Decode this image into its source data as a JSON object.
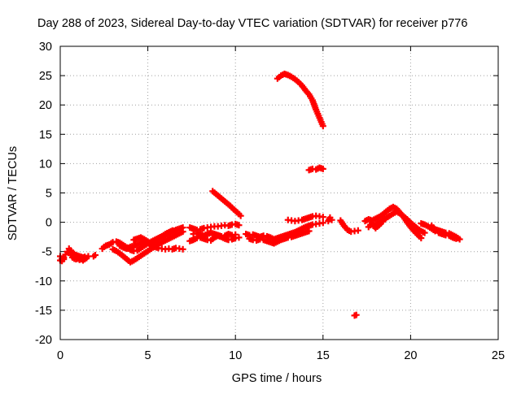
{
  "chart_data": {
    "type": "scatter",
    "title": "Day 288 of 2023, Sidereal Day-to-day VTEC variation (SDTVAR) for receiver p776",
    "xlabel": "GPS time / hours",
    "ylabel": "SDTVAR / TECUs",
    "xlim": [
      0,
      25
    ],
    "ylim": [
      -20,
      30
    ],
    "xticks": [
      "0",
      "5",
      "10",
      "15",
      "20",
      "25"
    ],
    "yticks": [
      "-20",
      "-15",
      "-10",
      "-5",
      "0",
      "5",
      "10",
      "15",
      "20",
      "25",
      "30"
    ],
    "grid": true,
    "marker": "+",
    "color": "#ff0000",
    "series": [
      {
        "name": "p776",
        "segments": [
          {
            "x": [
              0.0,
              0.1,
              0.2,
              0.3,
              0.4,
              0.5,
              0.6,
              0.7,
              0.8,
              0.9,
              1.0,
              1.1,
              1.2,
              1.3,
              1.4,
              1.5,
              1.6
            ],
            "y": [
              -5.8,
              -6.2,
              -6.0,
              -5.5,
              -5.0,
              -4.5,
              -4.8,
              -5.2,
              -5.4,
              -5.6,
              -5.7,
              -5.8,
              -5.9,
              -6.0,
              -5.9,
              -6.1,
              -5.8
            ]
          },
          {
            "x": [
              0.0,
              0.1,
              0.2
            ],
            "y": [
              -6.5,
              -6.6,
              -6.3
            ]
          },
          {
            "x": [
              0.5,
              0.6,
              0.7,
              0.8,
              0.9,
              1.0,
              1.1,
              1.2,
              1.3,
              1.4
            ],
            "y": [
              -5.2,
              -5.6,
              -6.0,
              -6.2,
              -6.3,
              -6.2,
              -6.4,
              -6.3,
              -6.5,
              -6.3
            ]
          },
          {
            "x": [
              1.9,
              2.0
            ],
            "y": [
              -5.8,
              -5.6
            ]
          },
          {
            "x": [
              2.4,
              2.5,
              2.6,
              2.7,
              2.8,
              2.9,
              3.0,
              3.2,
              3.4,
              3.6,
              3.8,
              4.0,
              4.2,
              4.4,
              4.6,
              4.8,
              5.0,
              5.2,
              5.4,
              5.6,
              5.8,
              6.0,
              6.2,
              6.4,
              6.6,
              6.8,
              7.0
            ],
            "y": [
              -4.5,
              -4.2,
              -4.0,
              -3.9,
              -3.8,
              -3.6,
              -3.4,
              -3.3,
              -3.5,
              -3.9,
              -4.3,
              -4.7,
              -4.9,
              -4.8,
              -4.4,
              -4.0,
              -3.6,
              -3.3,
              -3.0,
              -2.7,
              -2.4,
              -2.1,
              -1.9,
              -1.6,
              -1.3,
              -1.1,
              -0.9
            ]
          },
          {
            "x": [
              3.0,
              3.2,
              3.4,
              3.6,
              3.8,
              4.0,
              4.2,
              4.4,
              4.6,
              4.8,
              5.0,
              5.2,
              5.4,
              5.6,
              5.8,
              6.0,
              6.2,
              6.4,
              6.6,
              6.8,
              7.0
            ],
            "y": [
              -4.6,
              -4.9,
              -5.3,
              -5.8,
              -6.3,
              -6.8,
              -6.5,
              -6.1,
              -5.7,
              -5.3,
              -4.9,
              -4.5,
              -4.1,
              -3.7,
              -3.4,
              -3.1,
              -2.8,
              -2.5,
              -2.2,
              -1.9,
              -1.6
            ]
          },
          {
            "x": [
              3.4,
              3.6,
              3.8,
              4.0,
              4.2,
              4.4,
              4.6,
              4.8,
              5.0,
              5.2,
              5.4,
              5.6,
              5.8,
              6.0,
              6.2,
              6.4,
              6.6,
              6.8,
              7.0
            ],
            "y": [
              -4.0,
              -4.3,
              -4.5,
              -4.2,
              -4.0,
              -3.8,
              -3.6,
              -3.4,
              -3.5,
              -3.9,
              -4.2,
              -4.4,
              -4.5,
              -4.6,
              -4.5,
              -4.6,
              -4.4,
              -4.5,
              -4.6
            ]
          },
          {
            "x": [
              4.2,
              4.4,
              4.6,
              4.8,
              5.0,
              5.2,
              5.4,
              5.6,
              5.8,
              6.0,
              6.2,
              6.4
            ],
            "y": [
              -3.0,
              -2.8,
              -2.6,
              -2.9,
              -3.3,
              -3.6,
              -3.2,
              -2.8,
              -2.4,
              -2.0,
              -1.7,
              -1.4
            ]
          },
          {
            "x": [
              7.4,
              7.6,
              7.8,
              8.0,
              8.2,
              8.4,
              8.6,
              8.8,
              9.0,
              9.2,
              9.4,
              9.6,
              9.8,
              10.0,
              10.2
            ],
            "y": [
              -0.9,
              -1.1,
              -1.3,
              -1.2,
              -1.0,
              -0.9,
              -0.8,
              -0.7,
              -0.7,
              -0.6,
              -0.5,
              -0.6,
              -0.4,
              -0.3,
              -0.5
            ]
          },
          {
            "x": [
              7.4,
              7.6,
              7.8,
              8.0,
              8.2,
              8.4,
              8.6,
              8.8,
              9.0,
              9.2,
              9.4,
              9.6,
              9.8,
              10.0,
              10.2
            ],
            "y": [
              -3.2,
              -3.0,
              -2.7,
              -2.6,
              -2.8,
              -3.0,
              -3.1,
              -2.6,
              -2.3,
              -2.5,
              -2.8,
              -3.0,
              -2.9,
              -2.7,
              -2.6
            ]
          },
          {
            "x": [
              7.6,
              7.8,
              8.0,
              8.2,
              8.4,
              8.6,
              8.8,
              9.0,
              9.2,
              9.4,
              9.6,
              9.8,
              10.0
            ],
            "y": [
              -2.0,
              -1.9,
              -2.1,
              -2.3,
              -2.0,
              -1.8,
              -2.0,
              -2.2,
              -2.4,
              -2.3,
              -2.0,
              -2.2,
              -2.1
            ]
          },
          {
            "x": [
              8.7,
              8.9,
              9.1,
              9.3,
              9.5,
              9.7,
              9.9,
              10.1,
              10.3
            ],
            "y": [
              5.3,
              4.8,
              4.3,
              3.8,
              3.3,
              2.8,
              2.2,
              1.7,
              1.1
            ]
          },
          {
            "x": [
              10.6,
              10.8,
              11.0,
              11.2,
              11.4,
              11.6,
              11.8,
              12.0,
              12.2,
              12.4,
              12.6,
              12.8,
              13.0,
              13.2,
              13.4,
              13.6,
              13.8,
              14.0,
              14.2,
              14.4,
              14.6,
              14.8,
              15.0
            ],
            "y": [
              -2.0,
              -2.2,
              -2.1,
              -2.3,
              -2.5,
              -2.3,
              -2.4,
              -2.6,
              -2.9,
              -2.7,
              -2.5,
              -2.3,
              -2.1,
              -1.9,
              -1.7,
              -1.4,
              -1.1,
              -0.8,
              -0.6,
              -0.4,
              -0.3,
              -0.2,
              -0.1
            ]
          },
          {
            "x": [
              10.8,
              11.0,
              11.2,
              11.4,
              11.6,
              11.8,
              12.0,
              12.2,
              12.4,
              12.6,
              12.8,
              13.0,
              13.2,
              13.4,
              13.6,
              13.8,
              14.0,
              14.2
            ],
            "y": [
              -2.8,
              -3.0,
              -3.1,
              -2.9,
              -3.0,
              -3.2,
              -3.4,
              -3.6,
              -3.3,
              -3.0,
              -2.8,
              -2.6,
              -2.5,
              -2.3,
              -2.1,
              -1.9,
              -1.7,
              -1.5
            ]
          },
          {
            "x": [
              12.4,
              12.6,
              12.8,
              13.0,
              13.2,
              13.4,
              13.6,
              13.8,
              14.0,
              14.2,
              14.4,
              14.6,
              14.8,
              15.0
            ],
            "y": [
              24.5,
              25.0,
              25.3,
              25.1,
              24.8,
              24.4,
              23.9,
              23.3,
              22.5,
              21.8,
              20.8,
              19.2,
              17.8,
              16.4
            ]
          },
          {
            "x": [
              13.0,
              13.2,
              13.4,
              13.6,
              13.8,
              14.0,
              14.2,
              14.4,
              14.6,
              14.8,
              15.0
            ],
            "y": [
              0.4,
              0.3,
              0.2,
              0.3,
              0.4,
              0.6,
              0.8,
              1.0,
              1.1,
              1.0,
              0.9
            ]
          },
          {
            "x": [
              14.2,
              14.4,
              14.6,
              14.8,
              15.0
            ],
            "y": [
              8.9,
              9.1,
              9.0,
              9.3,
              9.1
            ]
          },
          {
            "x": [
              15.3,
              15.4,
              15.5
            ],
            "y": [
              0.2,
              0.8,
              0.4
            ]
          },
          {
            "x": [
              16.0,
              16.2,
              16.4,
              16.6,
              16.8,
              17.0
            ],
            "y": [
              0.3,
              -0.6,
              -1.3,
              -1.6,
              -1.5,
              -1.4
            ]
          },
          {
            "x": [
              16.8,
              16.9
            ],
            "y": [
              -15.9,
              -15.8
            ]
          },
          {
            "x": [
              17.4,
              17.6,
              17.8,
              18.0,
              18.2,
              18.4,
              18.6,
              18.8,
              19.0,
              19.2,
              19.4,
              19.6,
              19.8,
              20.0,
              20.2,
              20.4,
              20.6
            ],
            "y": [
              0.2,
              0.5,
              0.3,
              0.6,
              0.9,
              1.3,
              1.8,
              2.3,
              2.6,
              2.3,
              1.6,
              0.9,
              0.0,
              -0.8,
              -1.5,
              -2.1,
              -2.7
            ]
          },
          {
            "x": [
              18.0,
              18.2,
              18.4,
              18.6,
              18.8,
              19.0,
              19.2,
              19.4,
              19.6,
              19.8,
              20.0,
              20.2,
              20.4,
              20.6,
              20.8
            ],
            "y": [
              -0.4,
              0.0,
              0.3,
              0.7,
              1.1,
              1.5,
              1.8,
              1.5,
              1.0,
              0.5,
              -0.1,
              -0.6,
              -1.1,
              -1.5,
              -1.8
            ]
          },
          {
            "x": [
              17.6,
              17.8,
              18.0,
              18.2,
              18.4
            ],
            "y": [
              -0.8,
              -0.2,
              -1.0,
              -0.5,
              0.1
            ]
          },
          {
            "x": [
              20.6,
              20.8,
              21.0,
              21.2,
              21.4
            ],
            "y": [
              -0.2,
              -0.4,
              -0.7,
              -1.1,
              -1.5
            ]
          },
          {
            "x": [
              21.2,
              21.4,
              21.6,
              21.8,
              22.0,
              22.2,
              22.4,
              22.6,
              22.8
            ],
            "y": [
              -0.6,
              -1.2,
              -1.4,
              -1.6,
              -1.8,
              -1.9,
              -2.2,
              -2.5,
              -2.9
            ]
          },
          {
            "x": [
              21.6,
              21.8,
              22.0,
              22.2,
              22.4,
              22.6
            ],
            "y": [
              -1.8,
              -2.0,
              -2.2,
              -2.3,
              -2.6,
              -2.8
            ]
          }
        ]
      }
    ]
  }
}
